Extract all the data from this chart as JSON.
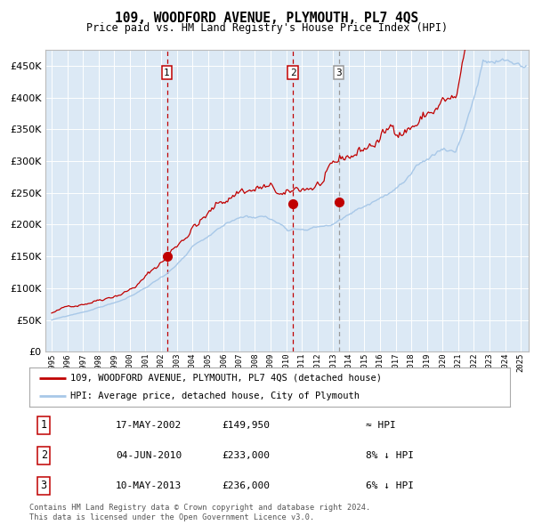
{
  "title": "109, WOODFORD AVENUE, PLYMOUTH, PL7 4QS",
  "subtitle": "Price paid vs. HM Land Registry's House Price Index (HPI)",
  "hpi_color": "#a8c8e8",
  "price_color": "#c00000",
  "plot_bg": "#dce9f5",
  "ylim": [
    0,
    475000
  ],
  "yticks": [
    0,
    50000,
    100000,
    150000,
    200000,
    250000,
    300000,
    350000,
    400000,
    450000
  ],
  "xlim_start": 1994.6,
  "xlim_end": 2025.5,
  "sale_dates": [
    2002.37,
    2010.43,
    2013.36
  ],
  "sale_prices": [
    149950,
    233000,
    236000
  ],
  "sale_labels": [
    "1",
    "2",
    "3"
  ],
  "legend_line1": "109, WOODFORD AVENUE, PLYMOUTH, PL7 4QS (detached house)",
  "legend_line2": "HPI: Average price, detached house, City of Plymouth",
  "table_rows": [
    {
      "num": "1",
      "date": "17-MAY-2002",
      "price": "£149,950",
      "vs": "≈ HPI"
    },
    {
      "num": "2",
      "date": "04-JUN-2010",
      "price": "£233,000",
      "vs": "8% ↓ HPI"
    },
    {
      "num": "3",
      "date": "10-MAY-2013",
      "price": "£236,000",
      "vs": "6% ↓ HPI"
    }
  ],
  "footnote": "Contains HM Land Registry data © Crown copyright and database right 2024.\nThis data is licensed under the Open Government Licence v3.0."
}
